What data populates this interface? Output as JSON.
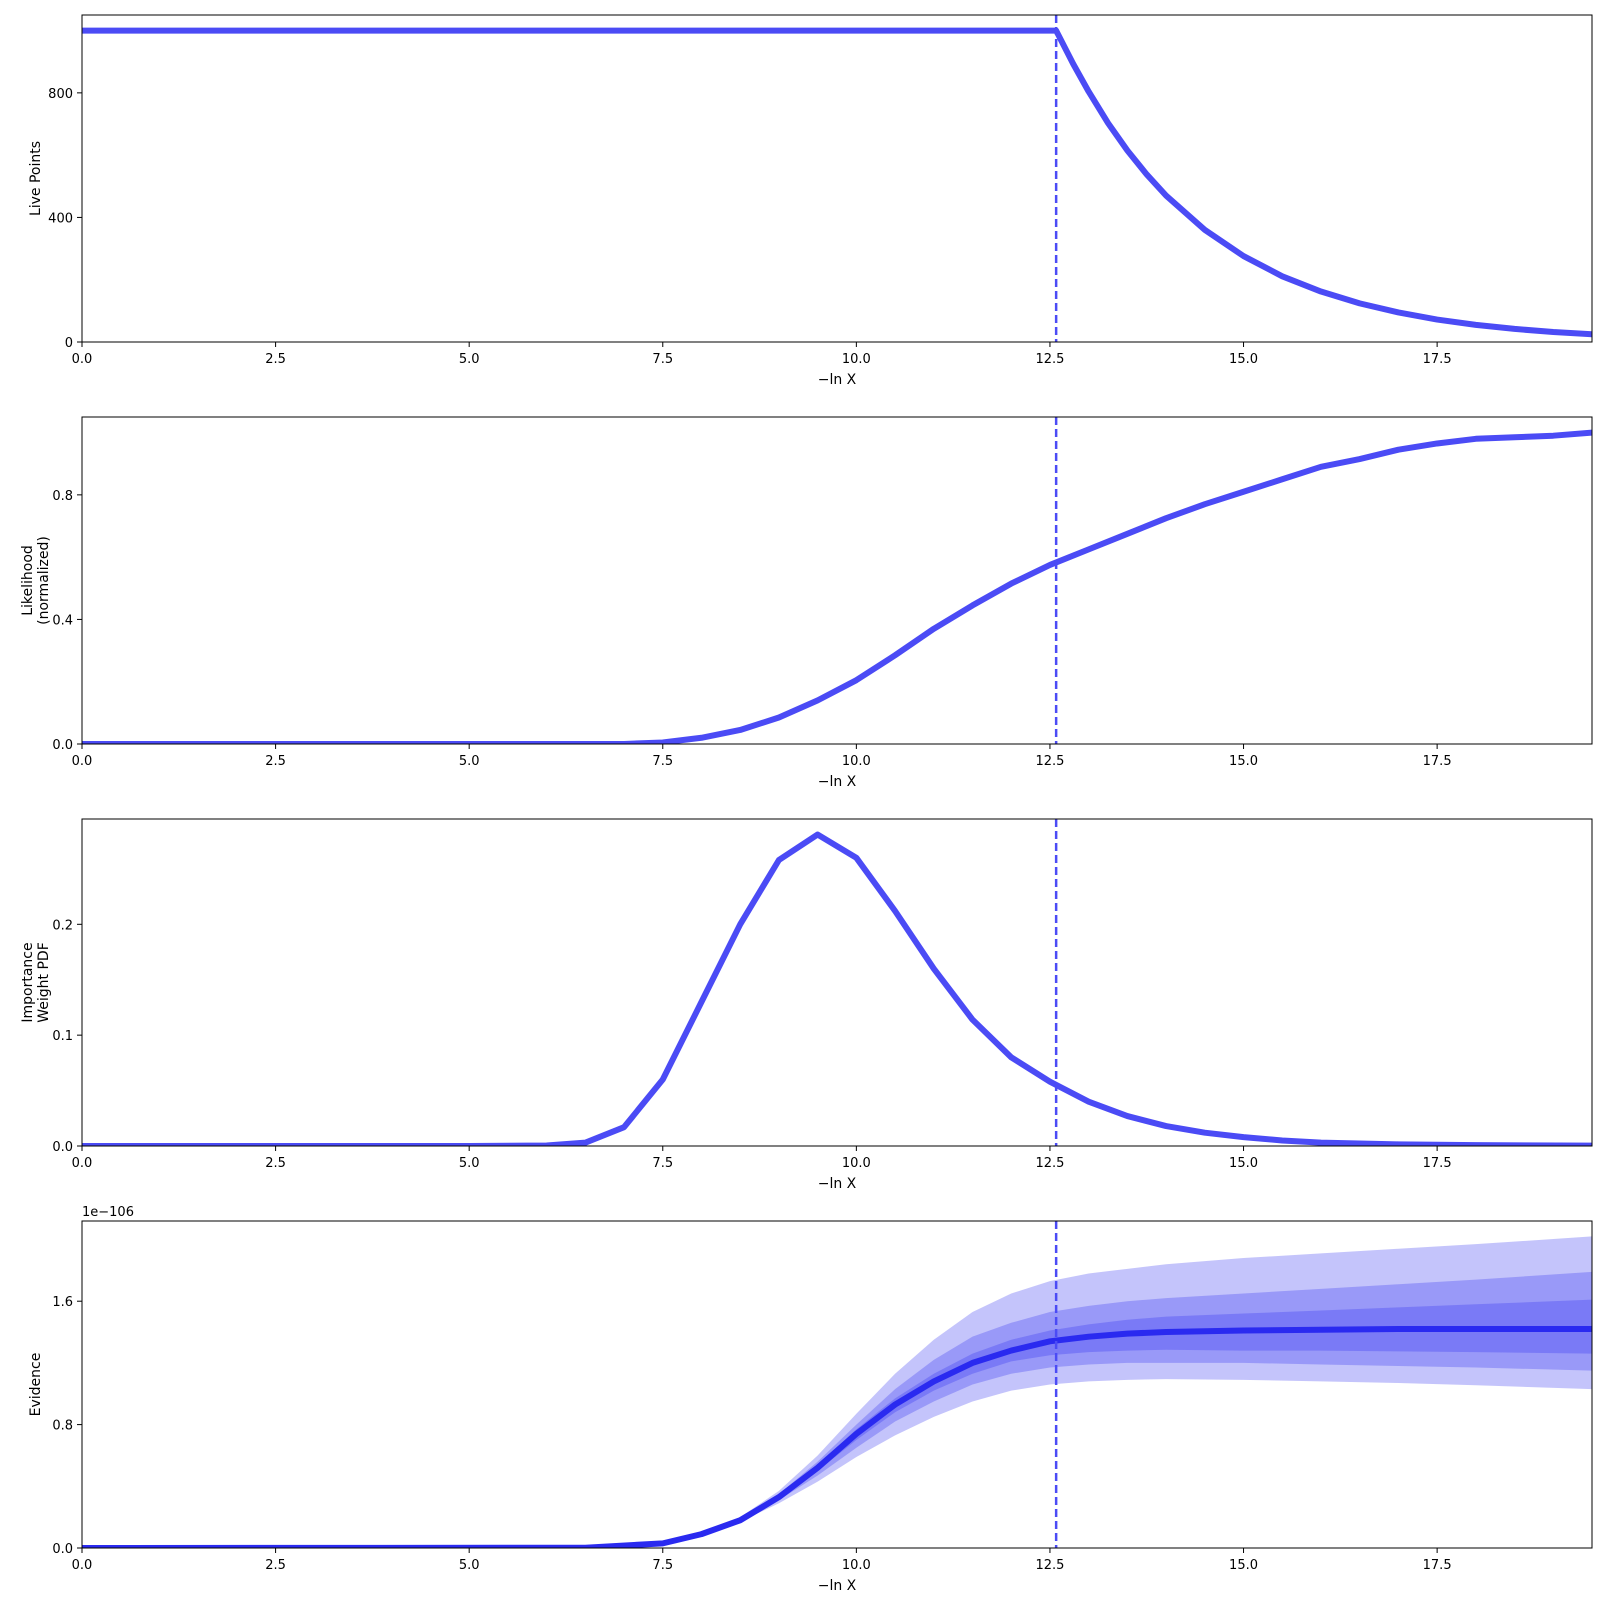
{
  "chart_data": [
    {
      "type": "line",
      "xlabel": "−ln X",
      "ylabel": [
        "Live Points"
      ],
      "xlim": [
        0,
        19.5
      ],
      "ylim": [
        0,
        1050
      ],
      "xticks": [
        0.0,
        2.5,
        5.0,
        7.5,
        10.0,
        12.5,
        15.0,
        17.5
      ],
      "xtick_labels": [
        "0.0",
        "2.5",
        "5.0",
        "7.5",
        "10.0",
        "12.5",
        "15.0",
        "17.5"
      ],
      "yticks": [
        0,
        400,
        800
      ],
      "ytick_labels": [
        "0",
        "400",
        "800"
      ],
      "vline_x": 12.58,
      "grid": false,
      "series": [
        {
          "x": [
            0,
            12.58,
            12.8,
            13.0,
            13.25,
            13.5,
            13.75,
            14.0,
            14.5,
            15.0,
            15.5,
            16.0,
            16.5,
            17.0,
            17.5,
            18.0,
            18.5,
            19.0,
            19.5
          ],
          "y": [
            1000,
            1000,
            893,
            804,
            703,
            615,
            538,
            470,
            360,
            276,
            211,
            162,
            124,
            95,
            72,
            55,
            42,
            32,
            25
          ],
          "color": "#4b4bf5"
        }
      ]
    },
    {
      "type": "line",
      "xlabel": "−ln X",
      "ylabel": [
        "Likelihood",
        "(normalized)"
      ],
      "xlim": [
        0,
        19.5
      ],
      "ylim": [
        0,
        1.05
      ],
      "xticks": [
        0.0,
        2.5,
        5.0,
        7.5,
        10.0,
        12.5,
        15.0,
        17.5
      ],
      "xtick_labels": [
        "0.0",
        "2.5",
        "5.0",
        "7.5",
        "10.0",
        "12.5",
        "15.0",
        "17.5"
      ],
      "yticks": [
        0.0,
        0.4,
        0.8
      ],
      "ytick_labels": [
        "0.0",
        "0.4",
        "0.8"
      ],
      "vline_x": 12.58,
      "grid": false,
      "series": [
        {
          "x": [
            0,
            5.0,
            6.5,
            7.0,
            7.5,
            8.0,
            8.5,
            9.0,
            9.5,
            10.0,
            10.5,
            11.0,
            11.5,
            12.0,
            12.5,
            13.0,
            13.5,
            14.0,
            14.5,
            15.0,
            15.5,
            16.0,
            16.5,
            17.0,
            17.5,
            18.0,
            18.5,
            19.0,
            19.5
          ],
          "y": [
            0.0,
            0.0,
            0.0,
            0.0,
            0.005,
            0.02,
            0.045,
            0.085,
            0.14,
            0.205,
            0.285,
            0.37,
            0.445,
            0.515,
            0.575,
            0.625,
            0.675,
            0.725,
            0.77,
            0.81,
            0.85,
            0.89,
            0.915,
            0.945,
            0.965,
            0.98,
            0.985,
            0.99,
            1.0
          ],
          "color": "#4b4bf5"
        }
      ]
    },
    {
      "type": "line",
      "xlabel": "−ln X",
      "ylabel": [
        "Importance",
        "Weight PDF"
      ],
      "xlim": [
        0,
        19.5
      ],
      "ylim": [
        0,
        0.295
      ],
      "xticks": [
        0.0,
        2.5,
        5.0,
        7.5,
        10.0,
        12.5,
        15.0,
        17.5
      ],
      "xtick_labels": [
        "0.0",
        "2.5",
        "5.0",
        "7.5",
        "10.0",
        "12.5",
        "15.0",
        "17.5"
      ],
      "yticks": [
        0.0,
        0.1,
        0.2
      ],
      "ytick_labels": [
        "0.0",
        "0.1",
        "0.2"
      ],
      "vline_x": 12.58,
      "grid": false,
      "series": [
        {
          "x": [
            0,
            5.0,
            6.0,
            6.5,
            7.0,
            7.5,
            8.0,
            8.5,
            9.0,
            9.5,
            10.0,
            10.5,
            11.0,
            11.5,
            12.0,
            12.5,
            13.0,
            13.5,
            14.0,
            14.5,
            15.0,
            15.5,
            16.0,
            17.0,
            18.0,
            19.5
          ],
          "y": [
            0.0,
            0.0,
            0.0005,
            0.003,
            0.017,
            0.06,
            0.13,
            0.2,
            0.258,
            0.281,
            0.26,
            0.212,
            0.16,
            0.114,
            0.08,
            0.058,
            0.04,
            0.027,
            0.018,
            0.012,
            0.008,
            0.005,
            0.003,
            0.0015,
            0.0008,
            0.0003
          ],
          "color": "#4b4bf5"
        }
      ]
    },
    {
      "type": "area",
      "xlabel": "−ln X",
      "ylabel": [
        "Evidence"
      ],
      "offset_text": "1e−106",
      "xlim": [
        0,
        19.5
      ],
      "ylim": [
        0,
        2.12
      ],
      "xticks": [
        0.0,
        2.5,
        5.0,
        7.5,
        10.0,
        12.5,
        15.0,
        17.5
      ],
      "xtick_labels": [
        "0.0",
        "2.5",
        "5.0",
        "7.5",
        "10.0",
        "12.5",
        "15.0",
        "17.5"
      ],
      "yticks": [
        0.0,
        0.8,
        1.6
      ],
      "ytick_labels": [
        "0.0",
        "0.8",
        "1.6"
      ],
      "vline_x": 12.58,
      "grid": false,
      "x": [
        0,
        6.5,
        7.5,
        8.0,
        8.5,
        9.0,
        9.5,
        10.0,
        10.5,
        11.0,
        11.5,
        12.0,
        12.5,
        13.0,
        13.5,
        14.0,
        15.0,
        16.0,
        17.0,
        18.0,
        19.5
      ],
      "median": [
        0.0,
        0.002,
        0.03,
        0.09,
        0.18,
        0.33,
        0.52,
        0.74,
        0.93,
        1.08,
        1.2,
        1.28,
        1.34,
        1.37,
        1.39,
        1.4,
        1.41,
        1.415,
        1.42,
        1.42,
        1.42
      ],
      "bands": [
        {
          "lower": [
            0.0,
            0.002,
            0.03,
            0.085,
            0.17,
            0.29,
            0.43,
            0.59,
            0.73,
            0.85,
            0.95,
            1.02,
            1.06,
            1.08,
            1.09,
            1.095,
            1.09,
            1.08,
            1.07,
            1.055,
            1.03
          ],
          "upper": [
            0.0,
            0.002,
            0.035,
            0.1,
            0.2,
            0.37,
            0.6,
            0.87,
            1.13,
            1.35,
            1.53,
            1.65,
            1.73,
            1.78,
            1.81,
            1.84,
            1.88,
            1.91,
            1.94,
            1.97,
            2.02
          ],
          "opacity": 0.28
        },
        {
          "lower": [
            0.0,
            0.002,
            0.03,
            0.088,
            0.175,
            0.31,
            0.47,
            0.65,
            0.82,
            0.95,
            1.06,
            1.13,
            1.17,
            1.19,
            1.2,
            1.2,
            1.2,
            1.19,
            1.18,
            1.17,
            1.15
          ],
          "upper": [
            0.0,
            0.002,
            0.033,
            0.095,
            0.19,
            0.35,
            0.56,
            0.8,
            1.03,
            1.22,
            1.37,
            1.46,
            1.53,
            1.57,
            1.6,
            1.62,
            1.65,
            1.68,
            1.71,
            1.74,
            1.79
          ],
          "opacity": 0.28
        },
        {
          "lower": [
            0.0,
            0.002,
            0.03,
            0.089,
            0.178,
            0.32,
            0.5,
            0.7,
            0.88,
            1.02,
            1.13,
            1.21,
            1.25,
            1.27,
            1.28,
            1.285,
            1.28,
            1.28,
            1.275,
            1.27,
            1.26
          ],
          "upper": [
            0.0,
            0.002,
            0.032,
            0.092,
            0.185,
            0.34,
            0.54,
            0.77,
            0.97,
            1.13,
            1.26,
            1.35,
            1.41,
            1.45,
            1.48,
            1.5,
            1.52,
            1.54,
            1.56,
            1.58,
            1.61
          ],
          "opacity": 0.28
        }
      ],
      "color": "#2a2af0"
    }
  ]
}
